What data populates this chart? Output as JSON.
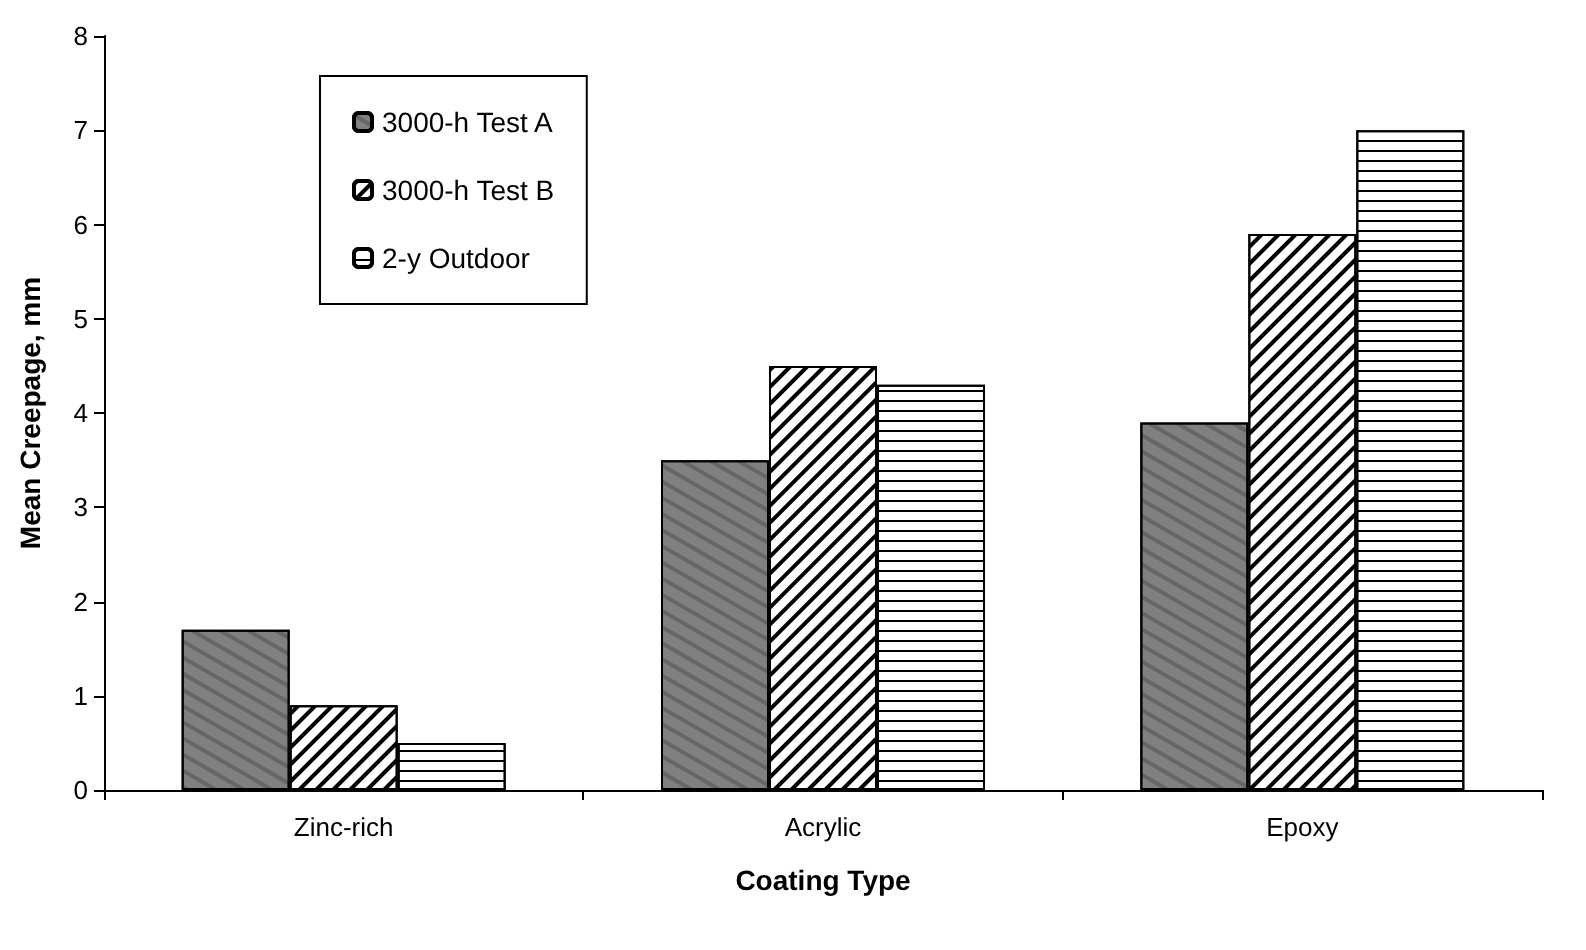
{
  "chart_data": {
    "type": "bar",
    "xlabel": "Coating Type",
    "ylabel": "Mean Creepage, mm",
    "categories": [
      "Zinc-rich",
      "Acrylic",
      "Epoxy"
    ],
    "series": [
      {
        "name": "3000-h Test A",
        "color": "#808080",
        "values": [
          1.7,
          3.5,
          3.9
        ]
      },
      {
        "name": "3000-h Test B",
        "color": "#ffffff",
        "values": [
          0.9,
          4.5,
          5.9
        ]
      },
      {
        "name": "2-y Outdoor",
        "color": "#ffffff",
        "values": [
          0.5,
          4.3,
          7.0
        ]
      }
    ],
    "ylim": [
      0,
      8
    ],
    "yticks": [
      0,
      1,
      2,
      3,
      4,
      5,
      6,
      7,
      8
    ],
    "grid": false,
    "legend": "top left"
  }
}
